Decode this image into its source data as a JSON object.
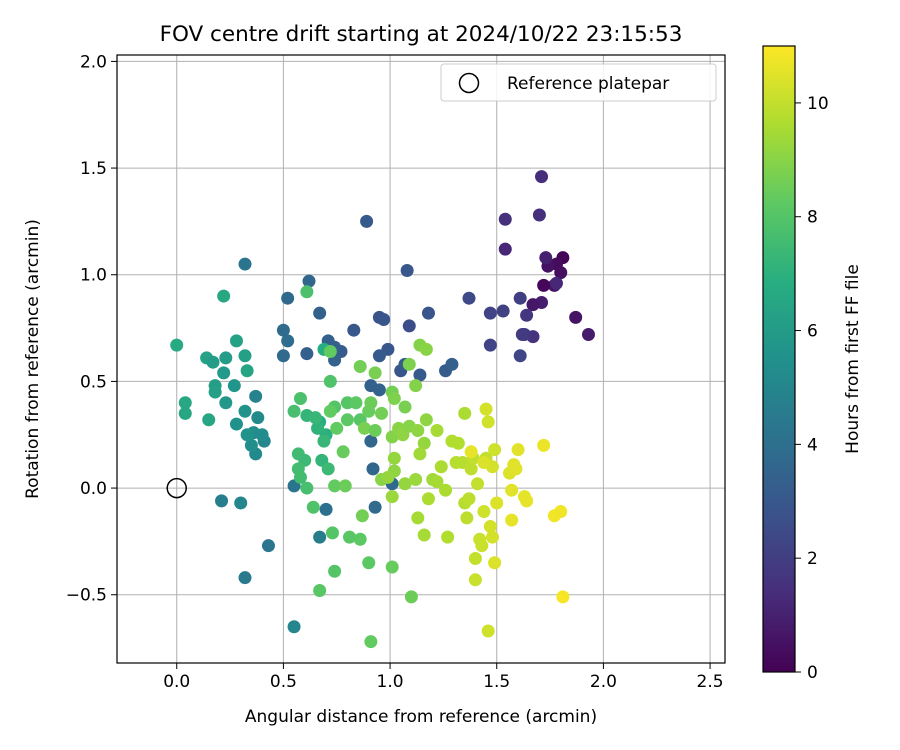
{
  "chart_data": {
    "type": "scatter",
    "title": "FOV centre drift starting at 2024/10/22 23:15:53",
    "xlabel": "Angular distance from reference (arcmin)",
    "ylabel": "Rotation from reference (arcmin)",
    "xlim": [
      -0.28,
      2.57
    ],
    "ylim": [
      -0.82,
      2.03
    ],
    "xticks": [
      "0.0",
      "0.5",
      "1.0",
      "1.5",
      "2.0",
      "2.5"
    ],
    "yticks": [
      "−0.5",
      "0.0",
      "0.5",
      "1.0",
      "1.5",
      "2.0"
    ],
    "grid": true,
    "legend": {
      "placement": "upper right",
      "entries": [
        "Reference platepar"
      ]
    },
    "reference_point": {
      "x": 0.0,
      "y": 0.0,
      "marker": "open-circle"
    },
    "colorbar": {
      "label": "Hours from first FF file",
      "colormap": "viridis",
      "range": [
        0,
        11
      ],
      "ticks": [
        "0",
        "2",
        "4",
        "6",
        "8",
        "10"
      ]
    },
    "points": [
      {
        "x": 1.81,
        "y": 1.08,
        "c": 0.1
      },
      {
        "x": 1.78,
        "y": 1.05,
        "c": 0.3
      },
      {
        "x": 1.74,
        "y": 1.04,
        "c": 0.5
      },
      {
        "x": 1.8,
        "y": 1.01,
        "c": 0.4
      },
      {
        "x": 1.77,
        "y": 0.95,
        "c": 0.6
      },
      {
        "x": 1.72,
        "y": 0.95,
        "c": 0.2
      },
      {
        "x": 1.73,
        "y": 1.08,
        "c": 1.0
      },
      {
        "x": 1.78,
        "y": 0.96,
        "c": 1.2
      },
      {
        "x": 1.93,
        "y": 0.72,
        "c": 0.8
      },
      {
        "x": 1.87,
        "y": 0.8,
        "c": 0.6
      },
      {
        "x": 1.71,
        "y": 0.87,
        "c": 0.9
      },
      {
        "x": 1.67,
        "y": 0.86,
        "c": 0.7
      },
      {
        "x": 1.71,
        "y": 1.46,
        "c": 1.4
      },
      {
        "x": 1.7,
        "y": 1.28,
        "c": 1.5
      },
      {
        "x": 1.54,
        "y": 1.26,
        "c": 1.5
      },
      {
        "x": 1.54,
        "y": 1.12,
        "c": 1.2
      },
      {
        "x": 1.67,
        "y": 0.71,
        "c": 1.6
      },
      {
        "x": 1.63,
        "y": 0.72,
        "c": 1.8
      },
      {
        "x": 1.62,
        "y": 0.72,
        "c": 1.9
      },
      {
        "x": 1.64,
        "y": 0.81,
        "c": 1.7
      },
      {
        "x": 1.61,
        "y": 0.89,
        "c": 2.0
      },
      {
        "x": 1.47,
        "y": 0.82,
        "c": 2.2
      },
      {
        "x": 1.53,
        "y": 0.83,
        "c": 2.1
      },
      {
        "x": 1.61,
        "y": 0.62,
        "c": 2.3
      },
      {
        "x": 1.47,
        "y": 0.67,
        "c": 2.2
      },
      {
        "x": 1.37,
        "y": 0.89,
        "c": 2.4
      },
      {
        "x": 1.09,
        "y": 0.76,
        "c": 2.6
      },
      {
        "x": 1.08,
        "y": 1.02,
        "c": 3.0
      },
      {
        "x": 1.18,
        "y": 0.82,
        "c": 2.9
      },
      {
        "x": 0.95,
        "y": 0.8,
        "c": 2.8
      },
      {
        "x": 0.97,
        "y": 0.79,
        "c": 2.9
      },
      {
        "x": 1.05,
        "y": 0.55,
        "c": 2.9
      },
      {
        "x": 0.99,
        "y": 0.65,
        "c": 3.0
      },
      {
        "x": 0.95,
        "y": 0.62,
        "c": 3.1
      },
      {
        "x": 1.07,
        "y": 0.58,
        "c": 3.2
      },
      {
        "x": 1.14,
        "y": 0.53,
        "c": 3.1
      },
      {
        "x": 0.89,
        "y": 1.25,
        "c": 3.1
      },
      {
        "x": 0.83,
        "y": 0.74,
        "c": 3.0
      },
      {
        "x": 0.77,
        "y": 0.64,
        "c": 3.2
      },
      {
        "x": 0.74,
        "y": 0.66,
        "c": 3.3
      },
      {
        "x": 0.71,
        "y": 0.69,
        "c": 3.4
      },
      {
        "x": 0.74,
        "y": 0.6,
        "c": 3.5
      },
      {
        "x": 0.67,
        "y": 0.82,
        "c": 3.4
      },
      {
        "x": 0.61,
        "y": 0.63,
        "c": 3.3
      },
      {
        "x": 0.62,
        "y": 0.97,
        "c": 3.6
      },
      {
        "x": 0.52,
        "y": 0.89,
        "c": 3.7
      },
      {
        "x": 0.5,
        "y": 0.74,
        "c": 3.8
      },
      {
        "x": 0.5,
        "y": 0.62,
        "c": 3.8
      },
      {
        "x": 0.52,
        "y": 0.69,
        "c": 3.9
      },
      {
        "x": 1.26,
        "y": 0.55,
        "c": 3.2
      },
      {
        "x": 1.29,
        "y": 0.58,
        "c": 3.3
      },
      {
        "x": 0.95,
        "y": 0.46,
        "c": 3.5
      },
      {
        "x": 0.91,
        "y": 0.48,
        "c": 3.4
      },
      {
        "x": 0.91,
        "y": 0.22,
        "c": 3.6
      },
      {
        "x": 0.92,
        "y": 0.09,
        "c": 3.6
      },
      {
        "x": 1.01,
        "y": 0.02,
        "c": 3.7
      },
      {
        "x": 0.93,
        "y": -0.09,
        "c": 3.8
      },
      {
        "x": 0.7,
        "y": -0.1,
        "c": 4.0
      },
      {
        "x": 0.55,
        "y": 0.01,
        "c": 4.2
      },
      {
        "x": 0.32,
        "y": 1.05,
        "c": 4.2
      },
      {
        "x": 0.43,
        "y": -0.27,
        "c": 4.3
      },
      {
        "x": 0.32,
        "y": -0.42,
        "c": 4.5
      },
      {
        "x": 0.67,
        "y": -0.23,
        "c": 4.6
      },
      {
        "x": 0.21,
        "y": -0.06,
        "c": 4.7
      },
      {
        "x": 0.3,
        "y": -0.07,
        "c": 5.0
      },
      {
        "x": 0.55,
        "y": -0.65,
        "c": 5.0
      },
      {
        "x": 0.37,
        "y": 0.43,
        "c": 4.9
      },
      {
        "x": 0.41,
        "y": 0.22,
        "c": 5.0
      },
      {
        "x": 0.38,
        "y": 0.33,
        "c": 5.2
      },
      {
        "x": 0.36,
        "y": 0.26,
        "c": 5.3
      },
      {
        "x": 0.37,
        "y": 0.16,
        "c": 5.2
      },
      {
        "x": 0.35,
        "y": 0.2,
        "c": 5.4
      },
      {
        "x": 0.4,
        "y": 0.25,
        "c": 5.3
      },
      {
        "x": 0.28,
        "y": 0.3,
        "c": 5.5
      },
      {
        "x": 0.33,
        "y": 0.25,
        "c": 5.6
      },
      {
        "x": 0.32,
        "y": 0.36,
        "c": 5.6
      },
      {
        "x": 0.23,
        "y": 0.4,
        "c": 5.8
      },
      {
        "x": 0.27,
        "y": 0.48,
        "c": 5.7
      },
      {
        "x": 0.22,
        "y": 0.54,
        "c": 5.9
      },
      {
        "x": 0.23,
        "y": 0.61,
        "c": 6.0
      },
      {
        "x": 0.18,
        "y": 0.48,
        "c": 6.1
      },
      {
        "x": 0.18,
        "y": 0.45,
        "c": 6.2
      },
      {
        "x": 0.14,
        "y": 0.61,
        "c": 6.3
      },
      {
        "x": 0.17,
        "y": 0.59,
        "c": 6.0
      },
      {
        "x": 0.32,
        "y": 0.62,
        "c": 6.2
      },
      {
        "x": 0.33,
        "y": 0.55,
        "c": 6.4
      },
      {
        "x": 0.28,
        "y": 0.69,
        "c": 6.3
      },
      {
        "x": 0.22,
        "y": 0.9,
        "c": 6.6
      },
      {
        "x": 0.15,
        "y": 0.32,
        "c": 6.5
      },
      {
        "x": 0.04,
        "y": 0.4,
        "c": 6.6
      },
      {
        "x": 0.04,
        "y": 0.35,
        "c": 6.5
      },
      {
        "x": 0.0,
        "y": 0.67,
        "c": 6.7
      },
      {
        "x": 0.69,
        "y": 0.65,
        "c": 6.8
      },
      {
        "x": 0.67,
        "y": 0.31,
        "c": 6.9
      },
      {
        "x": 0.7,
        "y": 0.25,
        "c": 7.0
      },
      {
        "x": 0.66,
        "y": 0.28,
        "c": 7.1
      },
      {
        "x": 0.61,
        "y": 0.34,
        "c": 7.2
      },
      {
        "x": 0.65,
        "y": 0.33,
        "c": 7.3
      },
      {
        "x": 0.69,
        "y": 0.22,
        "c": 7.3
      },
      {
        "x": 0.68,
        "y": 0.13,
        "c": 7.2
      },
      {
        "x": 0.71,
        "y": 0.09,
        "c": 7.4
      },
      {
        "x": 0.57,
        "y": 0.16,
        "c": 7.5
      },
      {
        "x": 0.6,
        "y": 0.13,
        "c": 7.4
      },
      {
        "x": 0.57,
        "y": 0.09,
        "c": 7.6
      },
      {
        "x": 0.58,
        "y": 0.05,
        "c": 7.6
      },
      {
        "x": 0.55,
        "y": 0.36,
        "c": 7.7
      },
      {
        "x": 0.58,
        "y": 0.42,
        "c": 7.8
      },
      {
        "x": 0.61,
        "y": 0.92,
        "c": 7.8
      },
      {
        "x": 0.61,
        "y": 0.0,
        "c": 7.7
      },
      {
        "x": 0.64,
        "y": -0.09,
        "c": 7.9
      },
      {
        "x": 0.73,
        "y": -0.21,
        "c": 8.0
      },
      {
        "x": 0.74,
        "y": -0.39,
        "c": 8.0
      },
      {
        "x": 0.67,
        "y": -0.48,
        "c": 8.1
      },
      {
        "x": 0.81,
        "y": -0.23,
        "c": 8.1
      },
      {
        "x": 0.86,
        "y": -0.24,
        "c": 8.2
      },
      {
        "x": 0.9,
        "y": -0.35,
        "c": 8.2
      },
      {
        "x": 0.91,
        "y": -0.72,
        "c": 8.3
      },
      {
        "x": 1.01,
        "y": -0.37,
        "c": 8.4
      },
      {
        "x": 1.1,
        "y": -0.51,
        "c": 8.5
      },
      {
        "x": 0.72,
        "y": 0.5,
        "c": 7.9
      },
      {
        "x": 0.74,
        "y": 0.38,
        "c": 8.0
      },
      {
        "x": 0.8,
        "y": 0.4,
        "c": 8.0
      },
      {
        "x": 0.84,
        "y": 0.4,
        "c": 8.2
      },
      {
        "x": 0.86,
        "y": 0.32,
        "c": 8.1
      },
      {
        "x": 0.8,
        "y": 0.32,
        "c": 8.2
      },
      {
        "x": 0.75,
        "y": 0.28,
        "c": 8.3
      },
      {
        "x": 0.72,
        "y": 0.36,
        "c": 8.3
      },
      {
        "x": 0.78,
        "y": 0.17,
        "c": 8.4
      },
      {
        "x": 0.74,
        "y": 0.01,
        "c": 8.3
      },
      {
        "x": 0.79,
        "y": 0.01,
        "c": 8.5
      },
      {
        "x": 0.87,
        "y": -0.13,
        "c": 8.6
      },
      {
        "x": 0.9,
        "y": 0.36,
        "c": 8.4
      },
      {
        "x": 0.91,
        "y": 0.4,
        "c": 8.5
      },
      {
        "x": 0.96,
        "y": 0.35,
        "c": 8.6
      },
      {
        "x": 0.88,
        "y": 0.28,
        "c": 8.7
      },
      {
        "x": 0.93,
        "y": 0.27,
        "c": 8.5
      },
      {
        "x": 0.86,
        "y": 0.57,
        "c": 8.6
      },
      {
        "x": 0.93,
        "y": 0.54,
        "c": 8.7
      },
      {
        "x": 0.72,
        "y": 0.64,
        "c": 8.3
      },
      {
        "x": 1.01,
        "y": 0.45,
        "c": 8.6
      },
      {
        "x": 1.02,
        "y": 0.42,
        "c": 8.8
      },
      {
        "x": 1.07,
        "y": 0.38,
        "c": 8.7
      },
      {
        "x": 1.09,
        "y": 0.58,
        "c": 8.8
      },
      {
        "x": 1.12,
        "y": 0.48,
        "c": 8.9
      },
      {
        "x": 1.14,
        "y": 0.67,
        "c": 8.9
      },
      {
        "x": 1.17,
        "y": 0.65,
        "c": 9.0
      },
      {
        "x": 1.01,
        "y": 0.24,
        "c": 8.9
      },
      {
        "x": 1.04,
        "y": 0.28,
        "c": 9.0
      },
      {
        "x": 1.06,
        "y": 0.25,
        "c": 9.1
      },
      {
        "x": 1.09,
        "y": 0.29,
        "c": 9.0
      },
      {
        "x": 1.13,
        "y": 0.27,
        "c": 9.1
      },
      {
        "x": 1.16,
        "y": 0.21,
        "c": 9.2
      },
      {
        "x": 1.17,
        "y": 0.32,
        "c": 9.1
      },
      {
        "x": 1.02,
        "y": 0.14,
        "c": 9.2
      },
      {
        "x": 1.02,
        "y": 0.08,
        "c": 9.1
      },
      {
        "x": 0.96,
        "y": 0.04,
        "c": 9.0
      },
      {
        "x": 0.99,
        "y": 0.05,
        "c": 9.2
      },
      {
        "x": 1.01,
        "y": -0.04,
        "c": 9.3
      },
      {
        "x": 1.07,
        "y": 0.02,
        "c": 9.2
      },
      {
        "x": 1.12,
        "y": 0.04,
        "c": 9.3
      },
      {
        "x": 1.14,
        "y": 0.16,
        "c": 9.4
      },
      {
        "x": 1.2,
        "y": 0.04,
        "c": 9.4
      },
      {
        "x": 1.13,
        "y": -0.14,
        "c": 9.5
      },
      {
        "x": 1.16,
        "y": -0.22,
        "c": 9.5
      },
      {
        "x": 1.18,
        "y": -0.05,
        "c": 9.6
      },
      {
        "x": 1.22,
        "y": 0.03,
        "c": 9.5
      },
      {
        "x": 1.22,
        "y": 0.27,
        "c": 9.5
      },
      {
        "x": 1.24,
        "y": 0.1,
        "c": 9.6
      },
      {
        "x": 1.26,
        "y": -0.01,
        "c": 9.6
      },
      {
        "x": 1.27,
        "y": -0.23,
        "c": 9.7
      },
      {
        "x": 1.29,
        "y": 0.22,
        "c": 9.7
      },
      {
        "x": 1.31,
        "y": 0.12,
        "c": 9.8
      },
      {
        "x": 1.32,
        "y": 0.21,
        "c": 9.7
      },
      {
        "x": 1.34,
        "y": 0.12,
        "c": 9.8
      },
      {
        "x": 1.35,
        "y": 0.35,
        "c": 9.6
      },
      {
        "x": 1.35,
        "y": -0.07,
        "c": 9.8
      },
      {
        "x": 1.36,
        "y": -0.14,
        "c": 9.9
      },
      {
        "x": 1.37,
        "y": -0.05,
        "c": 9.9
      },
      {
        "x": 1.38,
        "y": 0.09,
        "c": 9.9
      },
      {
        "x": 1.39,
        "y": 0.14,
        "c": 10.0
      },
      {
        "x": 1.41,
        "y": 0.02,
        "c": 10.0
      },
      {
        "x": 1.4,
        "y": -0.33,
        "c": 10.0
      },
      {
        "x": 1.4,
        "y": -0.43,
        "c": 10.1
      },
      {
        "x": 1.42,
        "y": -0.24,
        "c": 10.1
      },
      {
        "x": 1.43,
        "y": -0.27,
        "c": 10.1
      },
      {
        "x": 1.44,
        "y": -0.11,
        "c": 10.2
      },
      {
        "x": 1.45,
        "y": 0.14,
        "c": 10.0
      },
      {
        "x": 1.46,
        "y": 0.31,
        "c": 10.2
      },
      {
        "x": 1.46,
        "y": -0.67,
        "c": 10.2
      },
      {
        "x": 1.45,
        "y": 0.37,
        "c": 10.3
      },
      {
        "x": 1.47,
        "y": -0.18,
        "c": 10.3
      },
      {
        "x": 1.48,
        "y": -0.23,
        "c": 10.3
      },
      {
        "x": 1.49,
        "y": -0.35,
        "c": 10.4
      },
      {
        "x": 1.49,
        "y": 0.18,
        "c": 10.2
      },
      {
        "x": 1.5,
        "y": -0.07,
        "c": 10.4
      },
      {
        "x": 1.48,
        "y": 0.1,
        "c": 10.3
      },
      {
        "x": 1.56,
        "y": 0.07,
        "c": 10.4
      },
      {
        "x": 1.58,
        "y": 0.11,
        "c": 10.5
      },
      {
        "x": 1.59,
        "y": 0.09,
        "c": 10.5
      },
      {
        "x": 1.57,
        "y": -0.01,
        "c": 10.5
      },
      {
        "x": 1.57,
        "y": -0.15,
        "c": 10.6
      },
      {
        "x": 1.6,
        "y": 0.18,
        "c": 10.5
      },
      {
        "x": 1.63,
        "y": -0.04,
        "c": 10.6
      },
      {
        "x": 1.64,
        "y": -0.06,
        "c": 10.6
      },
      {
        "x": 1.72,
        "y": 0.2,
        "c": 10.7
      },
      {
        "x": 1.77,
        "y": -0.13,
        "c": 10.8
      },
      {
        "x": 1.8,
        "y": -0.11,
        "c": 10.8
      },
      {
        "x": 1.81,
        "y": -0.51,
        "c": 10.9
      },
      {
        "x": 1.38,
        "y": 0.17,
        "c": 10.6
      },
      {
        "x": 1.44,
        "y": 0.12,
        "c": 10.4
      }
    ]
  }
}
